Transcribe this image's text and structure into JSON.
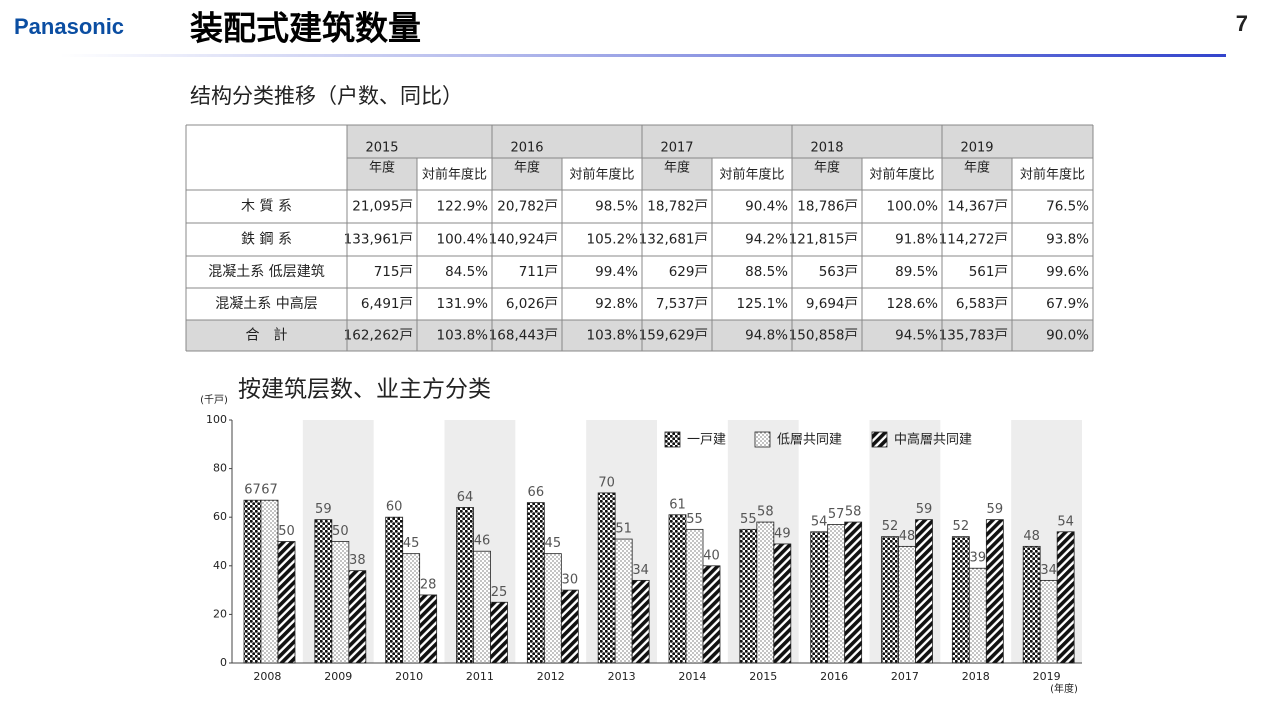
{
  "header": {
    "brand": "Panasonic",
    "title": "装配式建筑数量",
    "page": "7"
  },
  "table": {
    "caption": "结构分类推移（户数、同比）",
    "columns": [
      {
        "year": "2015",
        "unit": "年度",
        "ratio": "対前年度比"
      },
      {
        "year": "2016",
        "unit": "年度",
        "ratio": "対前年度比"
      },
      {
        "year": "2017",
        "unit": "年度",
        "ratio": "対前年度比"
      },
      {
        "year": "2018",
        "unit": "年度",
        "ratio": "対前年度比"
      },
      {
        "year": "2019",
        "unit": "年度",
        "ratio": "対前年度比"
      }
    ],
    "rows": [
      {
        "label": "木 質 系",
        "cells": [
          "21,095戸",
          "122.9%",
          "20,782戸",
          "98.5%",
          "18,782戸",
          "90.4%",
          "18,786戸",
          "100.0%",
          "14,367戸",
          "76.5%"
        ]
      },
      {
        "label": "鉄 鋼 系",
        "cells": [
          "133,961戸",
          "100.4%",
          "140,924戸",
          "105.2%",
          "132,681戸",
          "94.2%",
          "121,815戸",
          "91.8%",
          "114,272戸",
          "93.8%"
        ]
      },
      {
        "label": "混凝土系 低层建筑",
        "cells": [
          "715戸",
          "84.5%",
          "711戸",
          "99.4%",
          "629戸",
          "88.5%",
          "563戸",
          "89.5%",
          "561戸",
          "99.6%"
        ]
      },
      {
        "label": "混凝土系 中高层",
        "cells": [
          "6,491戸",
          "131.9%",
          "6,026戸",
          "92.8%",
          "7,537戸",
          "125.1%",
          "9,694戸",
          "128.6%",
          "6,583戸",
          "67.9%"
        ]
      },
      {
        "label": "合　計",
        "total": true,
        "cells": [
          "162,262戸",
          "103.8%",
          "168,443戸",
          "103.8%",
          "159,629戸",
          "94.8%",
          "150,858戸",
          "94.5%",
          "135,783戸",
          "90.0%"
        ]
      }
    ]
  },
  "chart_data": {
    "type": "bar",
    "title": "按建筑层数、业主方分类",
    "y_unit": "(千戸)",
    "x_unit": "(年度)",
    "categories": [
      "2008",
      "2009",
      "2010",
      "2011",
      "2012",
      "2013",
      "2014",
      "2015",
      "2016",
      "2017",
      "2018",
      "2019"
    ],
    "series": [
      {
        "name": "一戸建",
        "pattern": "dense-dots",
        "values": [
          67,
          59,
          60,
          64,
          66,
          70,
          61,
          55,
          54,
          52,
          52,
          48
        ]
      },
      {
        "name": "低層共同建",
        "pattern": "sparse-dots",
        "values": [
          67,
          50,
          45,
          46,
          45,
          51,
          55,
          58,
          57,
          48,
          39,
          34
        ]
      },
      {
        "name": "中高層共同建",
        "pattern": "hatch",
        "values": [
          50,
          38,
          28,
          25,
          30,
          34,
          40,
          49,
          58,
          59,
          59,
          54
        ]
      }
    ],
    "ylim": [
      0,
      100
    ],
    "yticks": [
      0,
      20,
      40,
      60,
      80,
      100
    ],
    "band_shading": true,
    "legend": "top-right"
  }
}
